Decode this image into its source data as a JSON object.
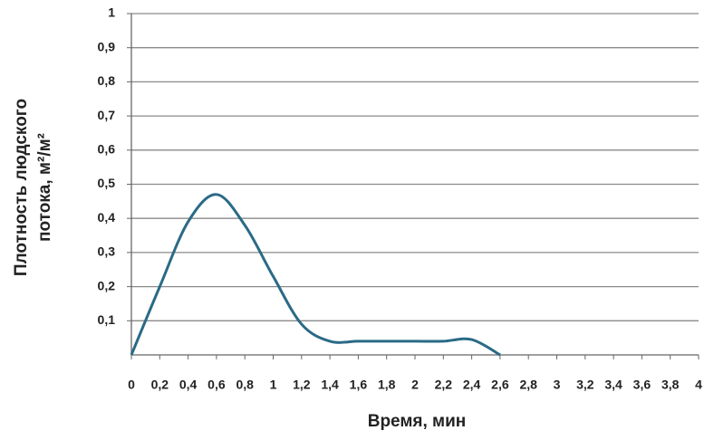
{
  "chart_data": {
    "type": "line",
    "ylabel": [
      "Плотность людского",
      "потока, м²/м²"
    ],
    "xlabel": "Время, мин",
    "xlim": [
      0,
      4
    ],
    "ylim": [
      0,
      1
    ],
    "xticks": [
      0,
      {
        "value": 0.2,
        "label": "0,2"
      },
      {
        "value": 0.4,
        "label": "0,4"
      },
      {
        "value": 0.6,
        "label": "0,6"
      },
      {
        "value": 0.8,
        "label": "0,8"
      },
      1,
      {
        "value": 1.2,
        "label": "1,2"
      },
      {
        "value": 1.4,
        "label": "1,4"
      },
      {
        "value": 1.6,
        "label": "1,6"
      },
      {
        "value": 1.8,
        "label": "1,8"
      },
      2,
      {
        "value": 2.2,
        "label": "2,2"
      },
      {
        "value": 2.4,
        "label": "2,4"
      },
      {
        "value": 2.6,
        "label": "2,6"
      },
      {
        "value": 2.8,
        "label": "2,8"
      },
      3,
      {
        "value": 3.2,
        "label": "3,2"
      },
      {
        "value": 3.4,
        "label": "3,4"
      },
      {
        "value": 3.6,
        "label": "3,6"
      },
      {
        "value": 3.8,
        "label": "3,8"
      },
      4
    ],
    "yticks": [
      {
        "value": 0.1,
        "label": "0,1"
      },
      {
        "value": 0.2,
        "label": "0,2"
      },
      {
        "value": 0.3,
        "label": "0,3"
      },
      {
        "value": 0.4,
        "label": "0,4"
      },
      {
        "value": 0.5,
        "label": "0,5"
      },
      {
        "value": 0.6,
        "label": "0,6"
      },
      {
        "value": 0.7,
        "label": "0,7"
      },
      {
        "value": 0.8,
        "label": "0,8"
      },
      {
        "value": 0.9,
        "label": "0,9"
      },
      1
    ],
    "grid": true,
    "x": [
      0,
      0.2,
      0.4,
      0.6,
      0.8,
      1.0,
      1.2,
      1.4,
      1.6,
      1.8,
      2.0,
      2.2,
      2.4,
      2.6
    ],
    "series": [
      {
        "color": "#2a6a86",
        "values": [
          0,
          0.2,
          0.39,
          0.47,
          0.38,
          0.23,
          0.09,
          0.04,
          0.04,
          0.04,
          0.04,
          0.04,
          0.045,
          0
        ]
      }
    ]
  }
}
